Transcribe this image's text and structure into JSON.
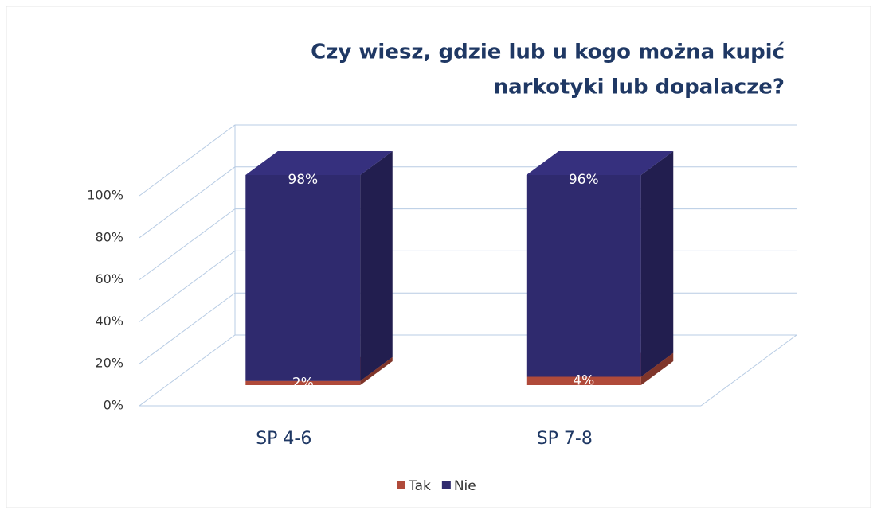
{
  "chart_data": {
    "type": "bar3d_stacked",
    "title": [
      "Czy wiesz, gdzie lub u kogo można kupić",
      "narkotyki lub dopalacze?"
    ],
    "categories": [
      "SP 4-6",
      "SP 7-8"
    ],
    "series": [
      {
        "name": "Tak",
        "color": "#b04a3a",
        "values": [
          2,
          4
        ],
        "value_labels": [
          "2%",
          "4%"
        ]
      },
      {
        "name": "Nie",
        "color": "#2f2a6e",
        "values": [
          98,
          96
        ],
        "value_labels": [
          "98%",
          "96%"
        ]
      }
    ],
    "ylim": [
      0,
      100
    ],
    "yticks": [
      {
        "value": 0,
        "label": "0%"
      },
      {
        "value": 20,
        "label": "20%"
      },
      {
        "value": 40,
        "label": "40%"
      },
      {
        "value": 60,
        "label": "60%"
      },
      {
        "value": 80,
        "label": "80%"
      },
      {
        "value": 100,
        "label": "100%"
      }
    ],
    "grid": true,
    "legend": "bottom"
  }
}
